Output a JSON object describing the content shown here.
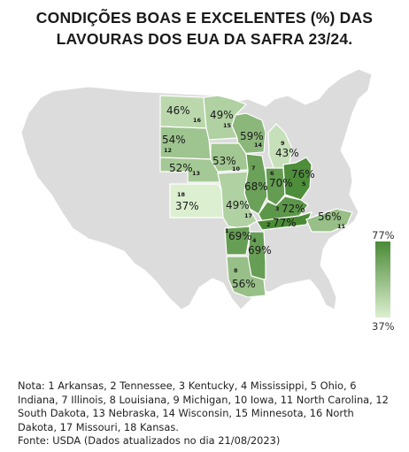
{
  "title": {
    "line1": "CONDIÇÕES BOAS E EXCELENTES (%) DAS",
    "line2": "LAVOURAS DOS EUA DA SAFRA 23/24."
  },
  "colors": {
    "base_land": "#dcdcdc",
    "state_border": "#ffffff",
    "scale_low": "#dcefd0",
    "scale_high": "#4a8a36",
    "text_dark": "#1a1a1a"
  },
  "legend": {
    "max": "77%",
    "min": "37%"
  },
  "states": [
    {
      "num": "1",
      "name": "Arkansas",
      "value": 69,
      "label": "69%"
    },
    {
      "num": "2",
      "name": "Tennessee",
      "value": 77,
      "label": "77%"
    },
    {
      "num": "3",
      "name": "Kentucky",
      "value": 72,
      "label": "72%"
    },
    {
      "num": "4",
      "name": "Mississippi",
      "value": 69,
      "label": "69%"
    },
    {
      "num": "5",
      "name": "Ohio",
      "value": 76,
      "label": "76%"
    },
    {
      "num": "6",
      "name": "Indiana",
      "value": 70,
      "label": "70%"
    },
    {
      "num": "7",
      "name": "Illinois",
      "value": 68,
      "label": "68%"
    },
    {
      "num": "8",
      "name": "Louisiana",
      "value": 56,
      "label": "56%"
    },
    {
      "num": "9",
      "name": "Michigan",
      "value": 43,
      "label": "43%"
    },
    {
      "num": "10",
      "name": "Iowa",
      "value": 53,
      "label": "53%"
    },
    {
      "num": "11",
      "name": "North Carolina",
      "value": 56,
      "label": "56%"
    },
    {
      "num": "12",
      "name": "South Dakota",
      "value": 54,
      "label": "54%"
    },
    {
      "num": "13",
      "name": "Nebraska",
      "value": 52,
      "label": "52%"
    },
    {
      "num": "14",
      "name": "Wisconsin",
      "value": 59,
      "label": "59%"
    },
    {
      "num": "15",
      "name": "Minnesota",
      "value": 49,
      "label": "49%"
    },
    {
      "num": "16",
      "name": "North Dakota",
      "value": 46,
      "label": "46%"
    },
    {
      "num": "17",
      "name": "Missouri",
      "value": 49,
      "label": "49%"
    },
    {
      "num": "18",
      "name": "Kansas",
      "value": 37,
      "label": "37%"
    }
  ],
  "note": {
    "text": "Nota: 1 Arkansas, 2 Tennessee, 3 Kentucky, 4 Mississippi, 5 Ohio, 6 Indiana, 7 Illinois, 8 Louisiana, 9 Michigan, 10 Iowa, 11 North Carolina, 12 South Dakota, 13 Nebraska, 14 Wisconsin, 15 Minnesota, 16 North Dakota, 17 Missouri, 18 Kansas.",
    "source": "Fonte: USDA (Dados atualizados no dia 21/08/2023)"
  }
}
